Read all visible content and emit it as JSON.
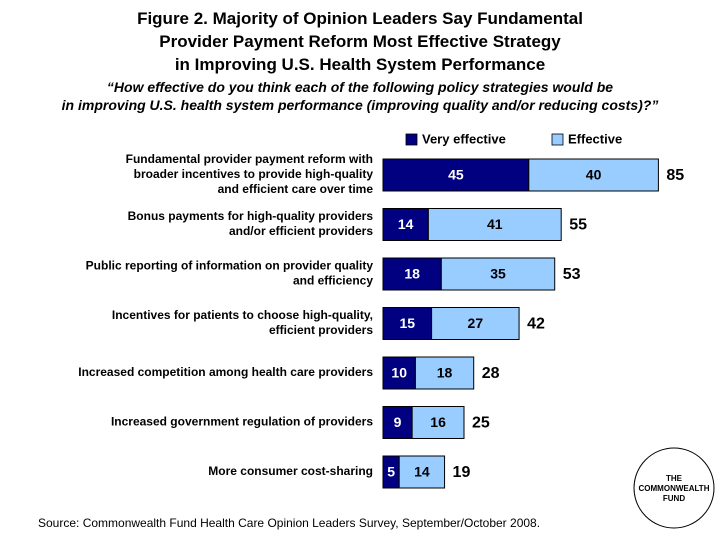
{
  "chart_data": {
    "type": "stacked-barh",
    "title": "Figure 2. Majority of Opinion Leaders Say Fundamental\nProvider Payment Reform Most Effective Strategy\nin Improving U.S. Health System Performance",
    "subtitle": "“How effective do you think each of the following policy strategies would be\nin improving U.S. health system performance (improving quality and/or reducing costs)?”",
    "categories": [
      "Fundamental provider payment reform with\nbroader incentives to provide high-quality\nand efficient care over time",
      "Bonus payments for high-quality providers\nand/or efficient providers",
      "Public reporting of information on provider quality\nand efficiency",
      "Incentives for patients to choose high-quality,\nefficient providers",
      "Increased competition among health care providers",
      "Increased government regulation of providers",
      "More consumer cost-sharing"
    ],
    "series": [
      {
        "name": "Very effective",
        "color": "#000080",
        "label_color": "#ffffff",
        "values": [
          45,
          14,
          18,
          15,
          10,
          9,
          5
        ]
      },
      {
        "name": "Effective",
        "color": "#99ccff",
        "label_color": "#000000",
        "values": [
          40,
          41,
          35,
          27,
          18,
          16,
          14
        ]
      }
    ],
    "totals": [
      85,
      55,
      53,
      42,
      28,
      25,
      19
    ],
    "xlim": [
      0,
      100
    ],
    "source": "Source: Commonwealth Fund Health Care Opinion Leaders Survey, September/October 2008.",
    "logo": "THE\nCOMMONWEALTH\nFUND"
  }
}
